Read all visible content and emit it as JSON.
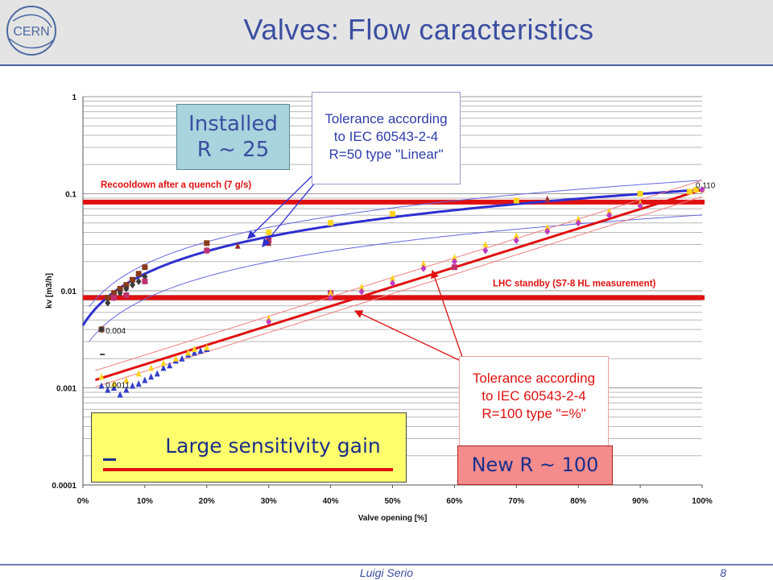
{
  "slide": {
    "title": "Valves:  Flow caracteristics",
    "logo_text": "CERN",
    "footer_author": "Luigi Serio",
    "page_number": "8"
  },
  "callouts": {
    "installed_line1": "Installed",
    "installed_line2": "R ~ 25",
    "tolerance_blue": [
      "Tolerance according",
      "to IEC 60543-2-4",
      "R=50 type \"Linear\""
    ],
    "tolerance_red": [
      "Tolerance according",
      "to IEC 60543-2-4",
      "R=100 type \"=%\""
    ],
    "new": "New  R ~ 100",
    "gain": "Large sensitivity gain"
  },
  "chart_data": {
    "type": "scatter",
    "xlabel": "Valve opening [%]",
    "ylabel": "kv [m3/h]",
    "x_ticks": [
      "0%",
      "10%",
      "20%",
      "30%",
      "40%",
      "50%",
      "60%",
      "70%",
      "80%",
      "90%",
      "100%"
    ],
    "y_ticks": [
      "0.0001",
      "0.001",
      "0.01",
      "0.1",
      "1"
    ],
    "x_range": [
      0,
      100
    ],
    "y_range": [
      0.0001,
      1
    ],
    "y_scale": "log",
    "grid": true,
    "horizontal_lines": [
      {
        "name": "Recooldown after a quench (7 g/s)",
        "y": 0.082,
        "color": "#e01010"
      },
      {
        "name": "LHC standby (S7-8 HL measurement)",
        "y": 0.0085,
        "color": "#e01010"
      }
    ],
    "data_labels": [
      {
        "text": "0.110",
        "x": 100,
        "y": 0.11
      },
      {
        "text": "0.004",
        "x": 3,
        "y": 0.004
      },
      {
        "text": "0.0011",
        "x": 3,
        "y": 0.0011
      }
    ],
    "installed_series": [
      {
        "color": "#8b3a1a",
        "marker": "square",
        "points": [
          [
            3,
            0.004
          ],
          [
            4,
            0.0085
          ],
          [
            5,
            0.0095
          ],
          [
            6,
            0.0105
          ],
          [
            7,
            0.0115
          ],
          [
            8,
            0.013
          ],
          [
            9,
            0.015
          ],
          [
            10,
            0.0175
          ],
          [
            20,
            0.031
          ]
        ]
      },
      {
        "color": "#3a3a3a",
        "marker": "diamond",
        "points": [
          [
            3,
            0.004
          ],
          [
            4,
            0.0075
          ],
          [
            5,
            0.0085
          ],
          [
            6,
            0.0095
          ],
          [
            7,
            0.0105
          ],
          [
            8,
            0.0115
          ],
          [
            9,
            0.0125
          ],
          [
            10,
            0.014
          ],
          [
            20,
            0.026
          ]
        ]
      },
      {
        "color": "#c03070",
        "marker": "square",
        "points": [
          [
            5,
            0.0085
          ],
          [
            7,
            0.009
          ],
          [
            10,
            0.0125
          ],
          [
            20,
            0.026
          ],
          [
            30,
            0.033
          ],
          [
            40,
            0.0095
          ],
          [
            60,
            0.0175
          ]
        ]
      },
      {
        "color": "#a03030",
        "marker": "triangle",
        "points": [
          [
            25,
            0.029
          ],
          [
            30,
            0.031
          ],
          [
            75,
            0.088
          ]
        ]
      },
      {
        "color": "#ffd21e",
        "marker": "square",
        "points": [
          [
            30,
            0.04
          ],
          [
            40,
            0.05
          ],
          [
            50,
            0.062
          ],
          [
            70,
            0.085
          ],
          [
            90,
            0.1
          ],
          [
            98,
            0.105
          ],
          [
            99,
            0.11
          ]
        ]
      }
    ],
    "new_series": [
      {
        "color": "#3440c8",
        "marker": "triangle",
        "points": [
          [
            3,
            0.00105
          ],
          [
            4,
            0.00095
          ],
          [
            5,
            0.001
          ],
          [
            6,
            0.00085
          ],
          [
            7,
            0.00095
          ],
          [
            8,
            0.00105
          ],
          [
            9,
            0.0011
          ],
          [
            10,
            0.0012
          ],
          [
            11,
            0.0013
          ],
          [
            12,
            0.0014
          ],
          [
            13,
            0.0016
          ],
          [
            14,
            0.0017
          ],
          [
            15,
            0.0019
          ],
          [
            16,
            0.002
          ],
          [
            17,
            0.0022
          ],
          [
            18,
            0.0023
          ],
          [
            19,
            0.0024
          ],
          [
            20,
            0.0025
          ]
        ]
      },
      {
        "color": "#ffd21e",
        "marker": "triangle",
        "points": [
          [
            3,
            0.0013
          ],
          [
            5,
            0.0011
          ],
          [
            7,
            0.0012
          ],
          [
            9,
            0.0014
          ],
          [
            11,
            0.0016
          ],
          [
            13,
            0.0018
          ],
          [
            15,
            0.002
          ],
          [
            17,
            0.0023
          ],
          [
            18,
            0.0025
          ],
          [
            20,
            0.0026
          ],
          [
            30,
            0.0052
          ],
          [
            40,
            0.0095
          ],
          [
            45,
            0.011
          ],
          [
            50,
            0.0135
          ],
          [
            55,
            0.019
          ],
          [
            60,
            0.022
          ],
          [
            65,
            0.03
          ],
          [
            70,
            0.037
          ],
          [
            75,
            0.045
          ],
          [
            80,
            0.055
          ],
          [
            85,
            0.066
          ],
          [
            90,
            0.08
          ],
          [
            100,
            0.11
          ]
        ]
      },
      {
        "color": "#c03cc0",
        "marker": "diamond",
        "points": [
          [
            30,
            0.0048
          ],
          [
            40,
            0.0085
          ],
          [
            45,
            0.0098
          ],
          [
            50,
            0.012
          ],
          [
            55,
            0.017
          ],
          [
            60,
            0.02
          ],
          [
            65,
            0.026
          ],
          [
            70,
            0.033
          ],
          [
            75,
            0.041
          ],
          [
            80,
            0.05
          ],
          [
            85,
            0.06
          ],
          [
            90,
            0.075
          ],
          [
            100,
            0.11
          ]
        ]
      }
    ],
    "fit_lines": [
      {
        "name": "installed-fit",
        "color": "#2f2fd0",
        "model": "linear",
        "R": 25
      },
      {
        "name": "new-fit",
        "color": "#e01010",
        "model": "equal-percentage",
        "R": 100
      }
    ]
  }
}
